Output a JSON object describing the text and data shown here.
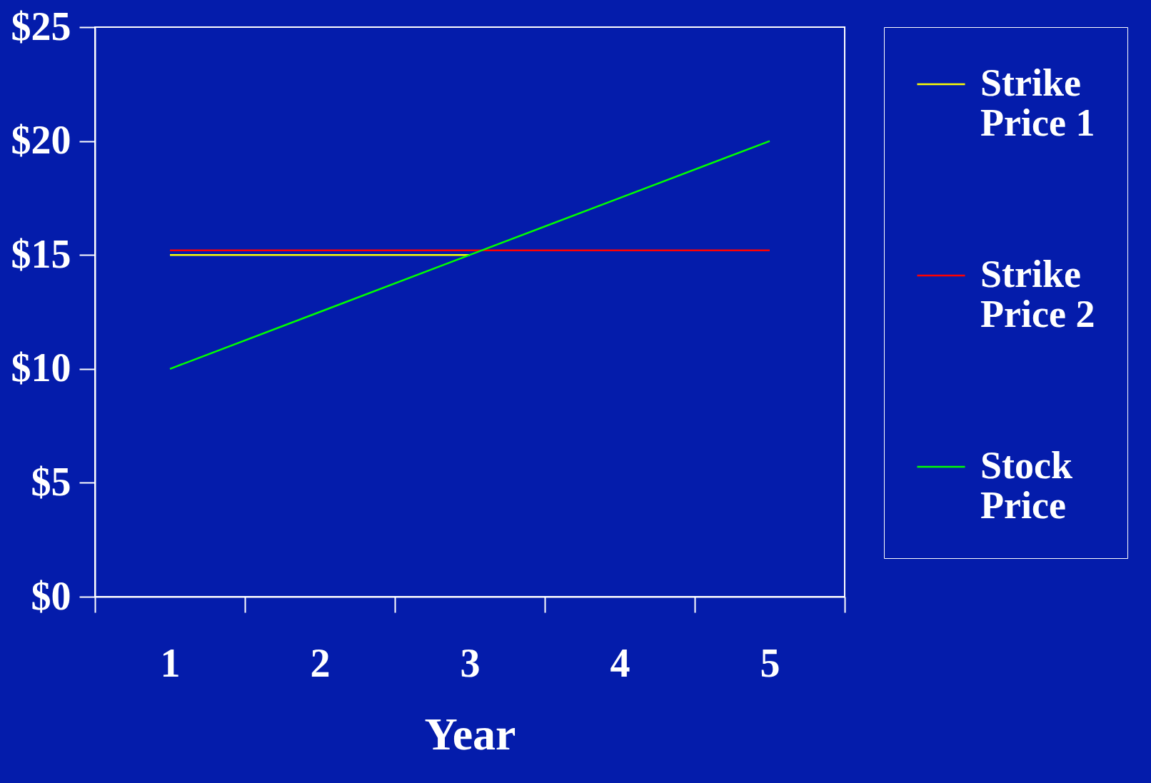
{
  "chart_data": {
    "type": "line",
    "xlabel": "Year",
    "categories": [
      "1",
      "2",
      "3",
      "4",
      "5"
    ],
    "series": [
      {
        "name": "Strike Price 1",
        "color": "#ffff00",
        "values": [
          15,
          15,
          15,
          null,
          null
        ]
      },
      {
        "name": "Strike Price 2",
        "color": "#ff0000",
        "values": [
          15.2,
          15.2,
          15.2,
          15.2,
          15.2
        ]
      },
      {
        "name": "Stock Price",
        "color": "#00ff00",
        "values": [
          10,
          12.5,
          15,
          17.5,
          20
        ]
      }
    ],
    "ylim": [
      0,
      25
    ],
    "yticks": [
      {
        "value": 0,
        "label": "$0"
      },
      {
        "value": 5,
        "label": "$5"
      },
      {
        "value": 10,
        "label": "$10"
      },
      {
        "value": 15,
        "label": "$15"
      },
      {
        "value": 20,
        "label": "$20"
      },
      {
        "value": 25,
        "label": "$25"
      }
    ],
    "grid": false,
    "legend": "right",
    "marker": "none",
    "line_style": "solid"
  }
}
